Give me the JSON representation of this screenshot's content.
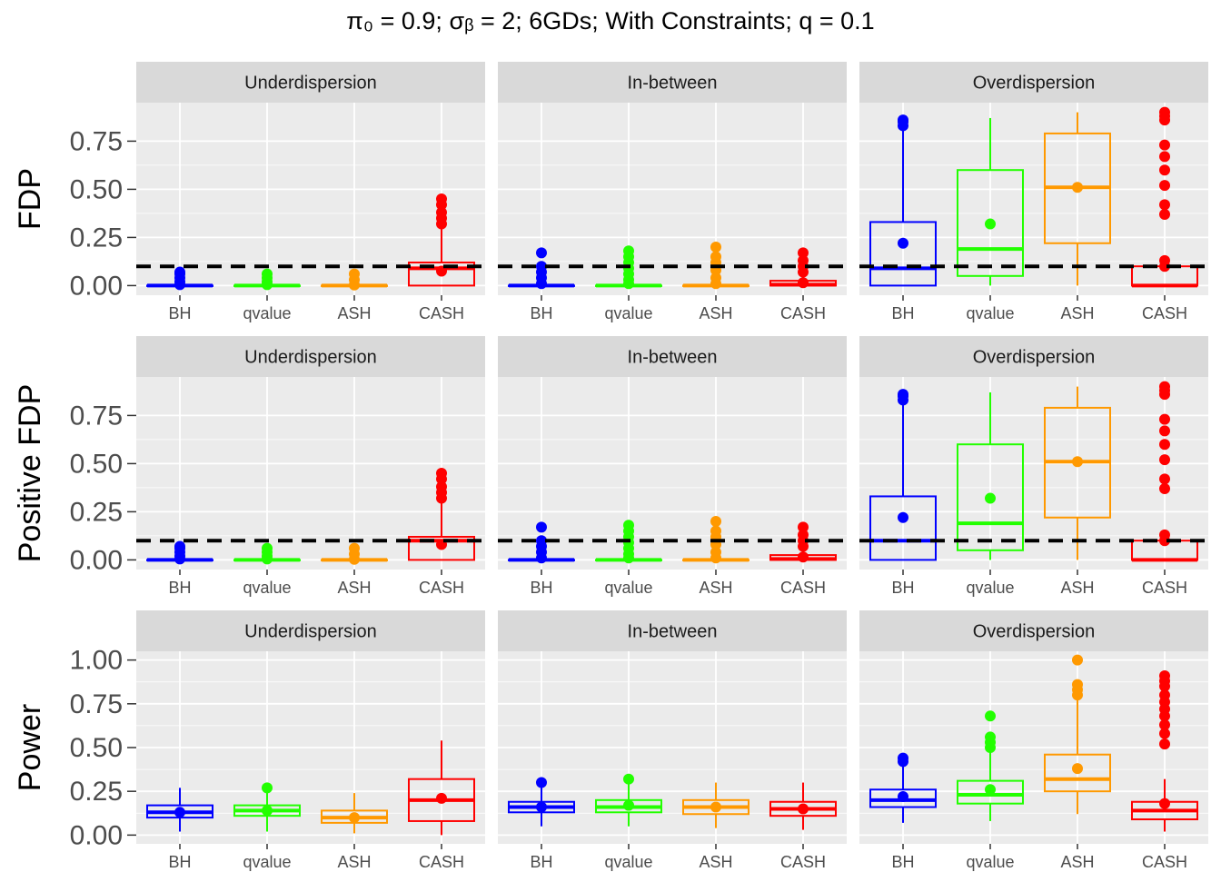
{
  "chart_data": {
    "type": "boxplot",
    "title": "π₀ = 0.9; σᵦ = 2; 6GDs; With Constraints; q = 0.1",
    "methods": [
      "BH",
      "qvalue",
      "ASH",
      "CASH"
    ],
    "colors": {
      "BH": "#0000ff",
      "qvalue": "#22ff00",
      "ASH": "#ff9900",
      "CASH": "#ff0000"
    },
    "reference_line": 0.1,
    "rows": [
      {
        "ylabel": "FDP",
        "yticks": [
          0,
          0.25,
          0.5,
          0.75
        ],
        "ytick_labels": [
          "0.00",
          "0.25",
          "0.50",
          "0.75"
        ],
        "ylim": [
          -0.05,
          0.95
        ],
        "show_ref": true,
        "panels": [
          {
            "strip": "Underdispersion",
            "boxes": [
              {
                "q1": 0,
                "median": 0,
                "q3": 0,
                "whislo": 0,
                "whishi": 0,
                "mean": 0.005,
                "outliers": [
                  0.02,
                  0.04,
                  0.06,
                  0.07
                ]
              },
              {
                "q1": 0,
                "median": 0,
                "q3": 0,
                "whislo": 0,
                "whishi": 0,
                "mean": 0.005,
                "outliers": [
                  0.02,
                  0.04,
                  0.06
                ]
              },
              {
                "q1": 0,
                "median": 0,
                "q3": 0,
                "whislo": 0,
                "whishi": 0,
                "mean": 0.003,
                "outliers": [
                  0.03,
                  0.06
                ]
              },
              {
                "q1": 0,
                "median": 0.09,
                "q3": 0.12,
                "whislo": 0,
                "whishi": 0.3,
                "mean": 0.075,
                "outliers": [
                  0.32,
                  0.35,
                  0.38,
                  0.42,
                  0.45
                ]
              }
            ]
          },
          {
            "strip": "In-between",
            "boxes": [
              {
                "q1": 0,
                "median": 0,
                "q3": 0,
                "whislo": 0,
                "whishi": 0,
                "mean": 0.01,
                "outliers": [
                  0.04,
                  0.07,
                  0.1,
                  0.17
                ]
              },
              {
                "q1": 0,
                "median": 0,
                "q3": 0,
                "whislo": 0,
                "whishi": 0,
                "mean": 0.01,
                "outliers": [
                  0.03,
                  0.06,
                  0.09,
                  0.12,
                  0.15,
                  0.18
                ]
              },
              {
                "q1": 0,
                "median": 0,
                "q3": 0,
                "whislo": 0,
                "whishi": 0,
                "mean": 0.01,
                "outliers": [
                  0.04,
                  0.08,
                  0.12,
                  0.15,
                  0.2
                ]
              },
              {
                "q1": 0,
                "median": 0.005,
                "q3": 0.025,
                "whislo": 0,
                "whishi": 0.05,
                "mean": 0.015,
                "outliers": [
                  0.07,
                  0.1,
                  0.13,
                  0.17
                ]
              }
            ]
          },
          {
            "strip": "Overdispersion",
            "boxes": [
              {
                "q1": 0,
                "median": 0.09,
                "q3": 0.33,
                "whislo": 0,
                "whishi": 0.82,
                "mean": 0.22,
                "outliers": [
                  0.83,
                  0.85,
                  0.86
                ]
              },
              {
                "q1": 0.05,
                "median": 0.19,
                "q3": 0.6,
                "whislo": 0,
                "whishi": 0.87,
                "mean": 0.32,
                "outliers": []
              },
              {
                "q1": 0.22,
                "median": 0.51,
                "q3": 0.79,
                "whislo": 0,
                "whishi": 0.9,
                "mean": 0.51,
                "outliers": []
              },
              {
                "q1": 0,
                "median": 0,
                "q3": 0.1,
                "whislo": 0,
                "whishi": 0.12,
                "mean": 0.1,
                "outliers": [
                  0.13,
                  0.37,
                  0.42,
                  0.52,
                  0.6,
                  0.67,
                  0.73,
                  0.86,
                  0.88,
                  0.9
                ]
              }
            ]
          }
        ]
      },
      {
        "ylabel": "Positive FDP",
        "yticks": [
          0,
          0.25,
          0.5,
          0.75
        ],
        "ytick_labels": [
          "0.00",
          "0.25",
          "0.50",
          "0.75"
        ],
        "ylim": [
          -0.05,
          0.95
        ],
        "show_ref": true,
        "panels": [
          {
            "strip": "Underdispersion",
            "boxes": [
              {
                "q1": 0,
                "median": 0,
                "q3": 0,
                "whislo": 0,
                "whishi": 0,
                "mean": 0.005,
                "outliers": [
                  0.02,
                  0.04,
                  0.06,
                  0.07
                ]
              },
              {
                "q1": 0,
                "median": 0,
                "q3": 0,
                "whislo": 0,
                "whishi": 0,
                "mean": 0.005,
                "outliers": [
                  0.02,
                  0.04,
                  0.06
                ]
              },
              {
                "q1": 0,
                "median": 0,
                "q3": 0,
                "whislo": 0,
                "whishi": 0,
                "mean": 0.003,
                "outliers": [
                  0.03,
                  0.06
                ]
              },
              {
                "q1": 0,
                "median": 0.1,
                "q3": 0.12,
                "whislo": 0,
                "whishi": 0.3,
                "mean": 0.08,
                "outliers": [
                  0.32,
                  0.35,
                  0.38,
                  0.42,
                  0.45
                ]
              }
            ]
          },
          {
            "strip": "In-between",
            "boxes": [
              {
                "q1": 0,
                "median": 0,
                "q3": 0,
                "whislo": 0,
                "whishi": 0,
                "mean": 0.01,
                "outliers": [
                  0.04,
                  0.07,
                  0.1,
                  0.17
                ]
              },
              {
                "q1": 0,
                "median": 0,
                "q3": 0,
                "whislo": 0,
                "whishi": 0,
                "mean": 0.01,
                "outliers": [
                  0.03,
                  0.06,
                  0.09,
                  0.12,
                  0.15,
                  0.18
                ]
              },
              {
                "q1": 0,
                "median": 0,
                "q3": 0,
                "whislo": 0,
                "whishi": 0,
                "mean": 0.01,
                "outliers": [
                  0.04,
                  0.08,
                  0.12,
                  0.15,
                  0.2
                ]
              },
              {
                "q1": 0,
                "median": 0.005,
                "q3": 0.025,
                "whislo": 0,
                "whishi": 0.05,
                "mean": 0.015,
                "outliers": [
                  0.07,
                  0.1,
                  0.13,
                  0.17
                ]
              }
            ]
          },
          {
            "strip": "Overdispersion",
            "boxes": [
              {
                "q1": 0,
                "median": 0.1,
                "q3": 0.33,
                "whislo": 0,
                "whishi": 0.82,
                "mean": 0.22,
                "outliers": [
                  0.83,
                  0.85,
                  0.86
                ]
              },
              {
                "q1": 0.05,
                "median": 0.19,
                "q3": 0.6,
                "whislo": 0,
                "whishi": 0.87,
                "mean": 0.32,
                "outliers": []
              },
              {
                "q1": 0.22,
                "median": 0.51,
                "q3": 0.79,
                "whislo": 0,
                "whishi": 0.9,
                "mean": 0.51,
                "outliers": []
              },
              {
                "q1": 0,
                "median": 0,
                "q3": 0.1,
                "whislo": 0,
                "whishi": 0.12,
                "mean": 0.1,
                "outliers": [
                  0.13,
                  0.37,
                  0.42,
                  0.52,
                  0.6,
                  0.67,
                  0.73,
                  0.86,
                  0.88,
                  0.9
                ]
              }
            ]
          }
        ]
      },
      {
        "ylabel": "Power",
        "yticks": [
          0,
          0.25,
          0.5,
          0.75,
          1.0
        ],
        "ytick_labels": [
          "0.00",
          "0.25",
          "0.50",
          "0.75",
          "1.00"
        ],
        "ylim": [
          -0.05,
          1.05
        ],
        "show_ref": false,
        "panels": [
          {
            "strip": "Underdispersion",
            "boxes": [
              {
                "q1": 0.1,
                "median": 0.13,
                "q3": 0.17,
                "whislo": 0.02,
                "whishi": 0.27,
                "mean": 0.13,
                "outliers": []
              },
              {
                "q1": 0.11,
                "median": 0.14,
                "q3": 0.17,
                "whislo": 0.02,
                "whishi": 0.26,
                "mean": 0.14,
                "outliers": [
                  0.27
                ]
              },
              {
                "q1": 0.07,
                "median": 0.1,
                "q3": 0.14,
                "whislo": 0.01,
                "whishi": 0.24,
                "mean": 0.1,
                "outliers": []
              },
              {
                "q1": 0.08,
                "median": 0.2,
                "q3": 0.32,
                "whislo": 0,
                "whishi": 0.54,
                "mean": 0.21,
                "outliers": []
              }
            ]
          },
          {
            "strip": "In-between",
            "boxes": [
              {
                "q1": 0.13,
                "median": 0.16,
                "q3": 0.19,
                "whislo": 0.05,
                "whishi": 0.28,
                "mean": 0.16,
                "outliers": [
                  0.3
                ]
              },
              {
                "q1": 0.13,
                "median": 0.16,
                "q3": 0.2,
                "whislo": 0.05,
                "whishi": 0.3,
                "mean": 0.17,
                "outliers": [
                  0.32
                ]
              },
              {
                "q1": 0.12,
                "median": 0.16,
                "q3": 0.2,
                "whislo": 0.04,
                "whishi": 0.3,
                "mean": 0.16,
                "outliers": []
              },
              {
                "q1": 0.11,
                "median": 0.15,
                "q3": 0.19,
                "whislo": 0.03,
                "whishi": 0.3,
                "mean": 0.15,
                "outliers": []
              }
            ]
          },
          {
            "strip": "Overdispersion",
            "boxes": [
              {
                "q1": 0.16,
                "median": 0.2,
                "q3": 0.26,
                "whislo": 0.07,
                "whishi": 0.4,
                "mean": 0.22,
                "outliers": [
                  0.42,
                  0.44
                ]
              },
              {
                "q1": 0.18,
                "median": 0.23,
                "q3": 0.31,
                "whislo": 0.08,
                "whishi": 0.48,
                "mean": 0.26,
                "outliers": [
                  0.5,
                  0.53,
                  0.56,
                  0.68
                ]
              },
              {
                "q1": 0.25,
                "median": 0.32,
                "q3": 0.46,
                "whislo": 0.12,
                "whishi": 0.77,
                "mean": 0.38,
                "outliers": [
                  0.8,
                  0.83,
                  0.86,
                  1.0
                ]
              },
              {
                "q1": 0.09,
                "median": 0.14,
                "q3": 0.19,
                "whislo": 0.02,
                "whishi": 0.32,
                "mean": 0.18,
                "outliers": [
                  0.52,
                  0.58,
                  0.63,
                  0.68,
                  0.72,
                  0.76,
                  0.8,
                  0.85,
                  0.88,
                  0.91
                ]
              }
            ]
          }
        ]
      }
    ]
  }
}
